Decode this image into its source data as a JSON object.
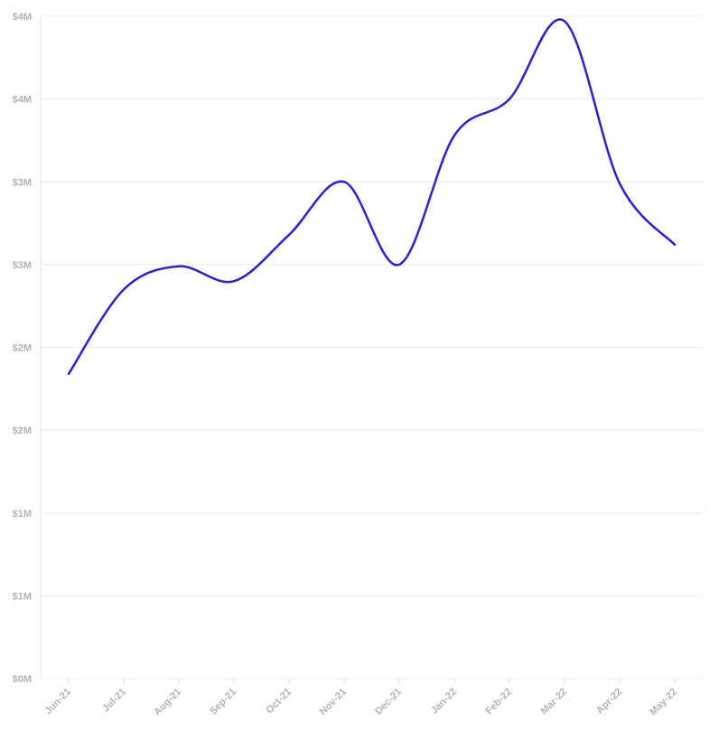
{
  "chart_data": {
    "type": "line",
    "title": "",
    "xlabel": "",
    "ylabel": "",
    "categories": [
      "Jun-21",
      "Jul-21",
      "Aug-21",
      "Sep-21",
      "Oct-21",
      "Nov-21",
      "Dec-21",
      "Jan-22",
      "Feb-22",
      "Mar-22",
      "Apr-22",
      "May-22"
    ],
    "series": [
      {
        "values": [
          1840000,
          2350000,
          2490000,
          2400000,
          2680000,
          3000000,
          2500000,
          3280000,
          3500000,
          3970000,
          2990000,
          2620000
        ]
      }
    ],
    "ylim": [
      0,
      4000000
    ],
    "y_ticks": [
      {
        "value": 0,
        "label": "$0M"
      },
      {
        "value": 500000,
        "label": "$1M"
      },
      {
        "value": 1000000,
        "label": "$1M"
      },
      {
        "value": 1500000,
        "label": "$2M"
      },
      {
        "value": 2000000,
        "label": "$2M"
      },
      {
        "value": 2500000,
        "label": "$3M"
      },
      {
        "value": 3000000,
        "label": "$3M"
      },
      {
        "value": 3500000,
        "label": "$4M"
      },
      {
        "value": 4000000,
        "label": "$4M"
      }
    ],
    "grid": true,
    "line_color": "#2f1fcf",
    "legend": "none"
  }
}
